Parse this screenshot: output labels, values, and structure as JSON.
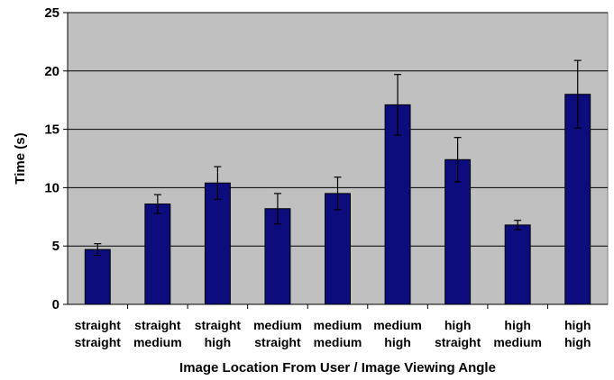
{
  "chart_data": {
    "type": "bar",
    "title": "",
    "xlabel": "Image Location From User / Image Viewing Angle",
    "ylabel": "Time (s)",
    "ylim": [
      0,
      25
    ],
    "yticks": [
      0,
      5,
      10,
      15,
      20,
      25
    ],
    "grid": true,
    "legend": "none",
    "categories": [
      [
        "straight",
        "straight"
      ],
      [
        "straight",
        "medium"
      ],
      [
        "straight",
        "high"
      ],
      [
        "medium",
        "straight"
      ],
      [
        "medium",
        "medium"
      ],
      [
        "medium",
        "high"
      ],
      [
        "high",
        "straight"
      ],
      [
        "high",
        "medium"
      ],
      [
        "high",
        "high"
      ]
    ],
    "values": [
      4.7,
      8.6,
      10.4,
      8.2,
      9.5,
      17.1,
      12.4,
      6.8,
      18.0
    ],
    "error": [
      0.5,
      0.8,
      1.4,
      1.3,
      1.4,
      2.6,
      1.9,
      0.4,
      2.9
    ],
    "colors": {
      "bar": "#0c0c7c",
      "plot_background": "#c0c0c0",
      "grid": "#000000"
    }
  }
}
